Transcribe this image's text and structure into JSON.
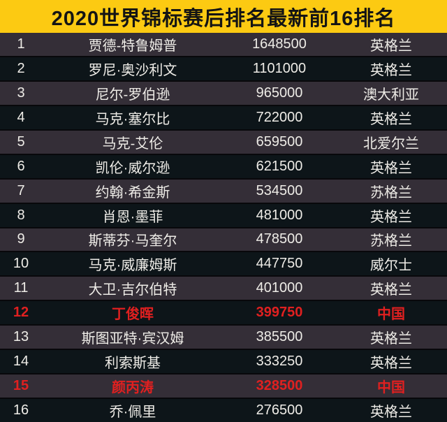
{
  "title": "2020世界锦标赛后排名最新前16排名",
  "colors": {
    "title_bg": "#fcca12",
    "title_text": "#141414",
    "row_odd_bg": "#342e37",
    "row_even_bg": "#0d1519",
    "text": "#eeece7",
    "highlight": "#e02020"
  },
  "chart_data": {
    "type": "table",
    "title": "2020世界锦标赛后排名最新前16排名",
    "rows": [
      {
        "rank": "1",
        "name": "贾德-特鲁姆普",
        "points": "1648500",
        "country": "英格兰",
        "highlighted": false
      },
      {
        "rank": "2",
        "name": "罗尼·奥沙利文",
        "points": "1101000",
        "country": "英格兰",
        "highlighted": false
      },
      {
        "rank": "3",
        "name": "尼尔-罗伯逊",
        "points": "965000",
        "country": "澳大利亚",
        "highlighted": false
      },
      {
        "rank": "4",
        "name": "马克·塞尔比",
        "points": "722000",
        "country": "英格兰",
        "highlighted": false
      },
      {
        "rank": "5",
        "name": "马克-艾伦",
        "points": "659500",
        "country": "北爱尔兰",
        "highlighted": false
      },
      {
        "rank": "6",
        "name": "凯伦·威尔逊",
        "points": "621500",
        "country": "英格兰",
        "highlighted": false
      },
      {
        "rank": "7",
        "name": "约翰·希金斯",
        "points": "534500",
        "country": "苏格兰",
        "highlighted": false
      },
      {
        "rank": "8",
        "name": "肖恩·墨菲",
        "points": "481000",
        "country": "英格兰",
        "highlighted": false
      },
      {
        "rank": "9",
        "name": "斯蒂芬·马奎尔",
        "points": "478500",
        "country": "苏格兰",
        "highlighted": false
      },
      {
        "rank": "10",
        "name": "马克·威廉姆斯",
        "points": "447750",
        "country": "威尔士",
        "highlighted": false
      },
      {
        "rank": "11",
        "name": "大卫·吉尔伯特",
        "points": "401000",
        "country": "英格兰",
        "highlighted": false
      },
      {
        "rank": "12",
        "name": "丁俊晖",
        "points": "399750",
        "country": "中国",
        "highlighted": true
      },
      {
        "rank": "13",
        "name": "斯图亚特·宾汉姆",
        "points": "385500",
        "country": "英格兰",
        "highlighted": false
      },
      {
        "rank": "14",
        "name": "利索斯基",
        "points": "333250",
        "country": "英格兰",
        "highlighted": false
      },
      {
        "rank": "15",
        "name": "颜丙涛",
        "points": "328500",
        "country": "中国",
        "highlighted": true
      },
      {
        "rank": "16",
        "name": "乔·佩里",
        "points": "276500",
        "country": "英格兰",
        "highlighted": false
      }
    ]
  }
}
